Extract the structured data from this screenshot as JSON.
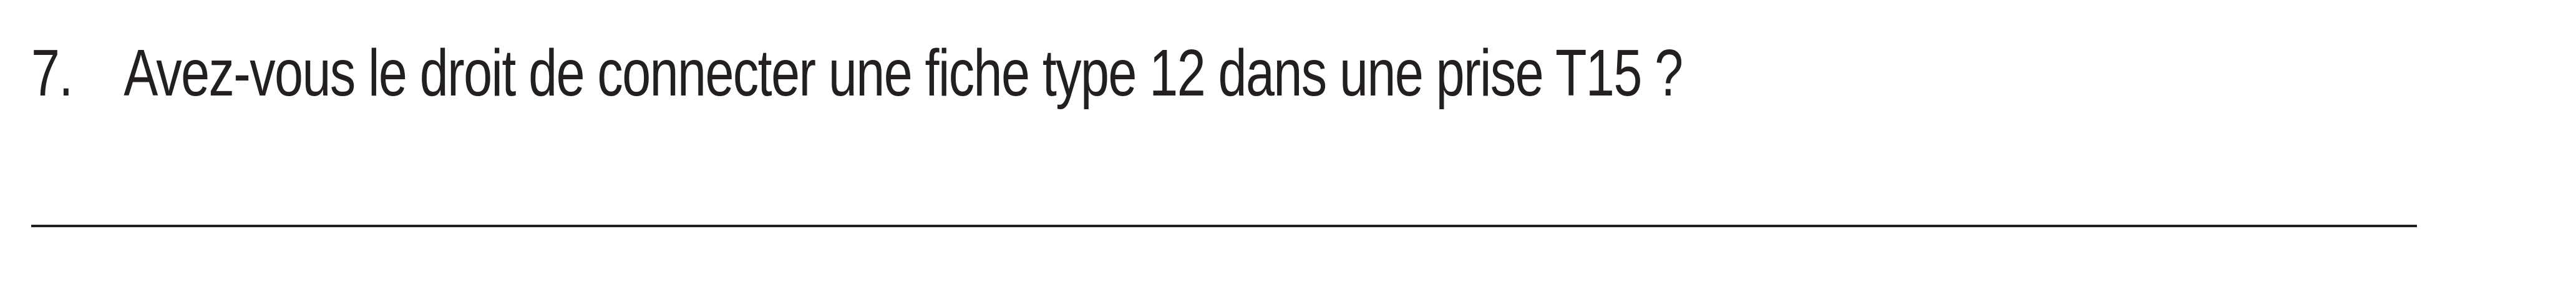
{
  "question": {
    "number": "7.",
    "text": "Avez-vous le droit de connecter une fiche type 12 dans une prise T15 ?"
  }
}
